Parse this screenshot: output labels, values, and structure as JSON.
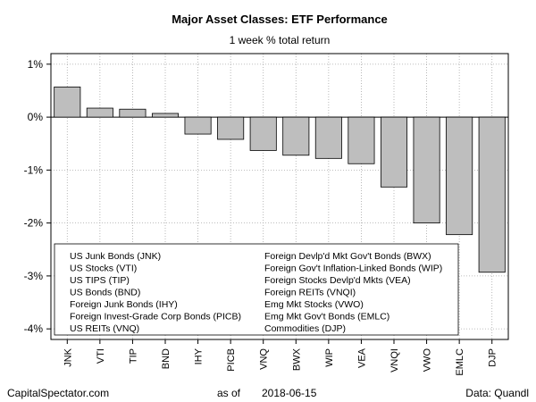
{
  "chart_data": {
    "type": "bar",
    "title": "Major Asset Classes: ETF Performance",
    "subtitle": "1 week % total return",
    "ylim": [
      -4.2,
      1.2
    ],
    "yticks": [
      1,
      0,
      -1,
      -2,
      -3,
      -4
    ],
    "ytick_labels": [
      "1%",
      "0%",
      "-1%",
      "-2%",
      "-3%",
      "-4%"
    ],
    "grid": true,
    "categories": [
      "JNK",
      "VTI",
      "TIP",
      "BND",
      "IHY",
      "PICB",
      "VNQ",
      "BWX",
      "WIP",
      "VEA",
      "VNQI",
      "VWO",
      "EMLC",
      "DJP"
    ],
    "values": [
      0.57,
      0.17,
      0.15,
      0.07,
      -0.32,
      -0.42,
      -0.63,
      -0.72,
      -0.78,
      -0.88,
      -1.32,
      -2.0,
      -2.22,
      -2.93
    ],
    "bar_color": "#bebebe",
    "legend_position": "bottom-left",
    "legend": {
      "left": [
        "US Junk Bonds (JNK)",
        "US Stocks (VTI)",
        "US TIPS (TIP)",
        "US Bonds (BND)",
        "Foreign Junk Bonds (IHY)",
        "Foreign Invest-Grade Corp Bonds (PICB)",
        "US REITs (VNQ)"
      ],
      "right": [
        "Foreign Devlp'd Mkt Gov't Bonds (BWX)",
        "Foreign Gov't Inflation-Linked Bonds (WIP)",
        "Foreign Stocks Devlp'd Mkts (VEA)",
        "Foreign REITs (VNQI)",
        "Emg Mkt Stocks (VWO)",
        "Emg Mkt Gov't Bonds (EMLC)",
        "Commodities (DJP)"
      ]
    }
  },
  "footer": {
    "source_site": "CapitalSpectator.com",
    "as_of_label": "as of",
    "date": "2018-06-15",
    "data_credit": "Data: Quandl"
  }
}
